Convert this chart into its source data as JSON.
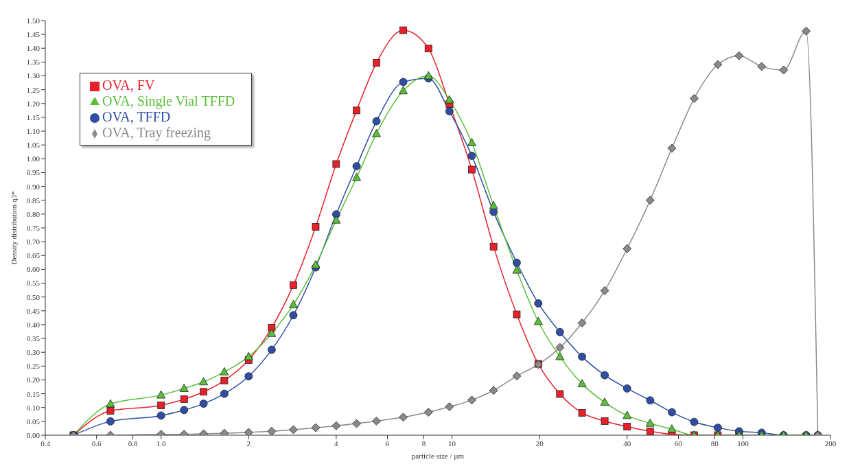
{
  "chart_data": {
    "type": "line",
    "xlabel": "particle size / µm",
    "ylabel": "Density distribution q3*",
    "log": "x",
    "grid": false,
    "legend": "top left",
    "line_style": "solid",
    "x": [
      0.5,
      0.67,
      1.0,
      1.2,
      1.4,
      1.65,
      2.0,
      2.4,
      2.85,
      3.4,
      4.0,
      4.7,
      5.5,
      6.8,
      8.3,
      9.8,
      11.7,
      13.9,
      16.7,
      19.8,
      23.5,
      28,
      33.5,
      40,
      48,
      57,
      68,
      82,
      97,
      116,
      138,
      165,
      181
    ],
    "xlim": [
      0.4,
      200
    ],
    "xticks": [
      0.4,
      0.6,
      0.8,
      {
        "value": 1,
        "label": "1.0"
      },
      2,
      4,
      6,
      8,
      10,
      20,
      40,
      60,
      80,
      100,
      200
    ],
    "ylim": [
      0,
      1.5
    ],
    "yticks": [
      {
        "value": 0,
        "label": "0.00"
      },
      0.05,
      {
        "value": 0.1,
        "label": "0.10"
      },
      0.15,
      {
        "value": 0.2,
        "label": "0.20"
      },
      0.25,
      {
        "value": 0.3,
        "label": "0.30"
      },
      0.35,
      {
        "value": 0.4,
        "label": "0.40"
      },
      0.45,
      {
        "value": 0.5,
        "label": "0.50"
      },
      0.55,
      {
        "value": 0.6,
        "label": "0.60"
      },
      0.65,
      {
        "value": 0.7,
        "label": "0.70"
      },
      0.75,
      {
        "value": 0.8,
        "label": "0.80"
      },
      0.85,
      {
        "value": 0.9,
        "label": "0.90"
      },
      0.95,
      {
        "value": 1,
        "label": "1.00"
      },
      1.05,
      {
        "value": 1.1,
        "label": "1.10"
      },
      1.15,
      {
        "value": 1.2,
        "label": "1.20"
      },
      1.25,
      {
        "value": 1.3,
        "label": "1.30"
      },
      1.35,
      {
        "value": 1.4,
        "label": "1.40"
      },
      1.45,
      {
        "value": 1.5,
        "label": "1.50"
      }
    ],
    "series": [
      {
        "name": "OVA, FV",
        "color": "#e8202a",
        "marker": "square",
        "values": [
          0,
          0.088,
          0.108,
          0.13,
          0.157,
          0.198,
          0.272,
          0.389,
          0.543,
          0.754,
          0.981,
          1.175,
          1.347,
          1.465,
          1.399,
          1.198,
          0.961,
          0.682,
          0.437,
          0.258,
          0.149,
          0.081,
          0.051,
          0.031,
          0.014,
          0.003,
          0,
          0,
          0,
          null,
          null,
          null,
          null
        ]
      },
      {
        "name": "OVA, TFFD",
        "color": "#2e4da3",
        "marker": "circle",
        "values": [
          0,
          0.05,
          0.071,
          0.091,
          0.114,
          0.15,
          0.213,
          0.309,
          0.434,
          0.607,
          0.799,
          0.973,
          1.136,
          1.278,
          1.291,
          1.172,
          1.011,
          0.808,
          0.624,
          0.477,
          0.373,
          0.284,
          0.217,
          0.169,
          0.126,
          0.083,
          0.048,
          0.027,
          0.014,
          0.009,
          0,
          0,
          0
        ]
      },
      {
        "name": "OVA, Single Vial  TFFD",
        "color": "#5bbf3a",
        "marker": "triangle",
        "values": [
          0,
          0.113,
          0.145,
          0.169,
          0.193,
          0.229,
          0.284,
          0.368,
          0.472,
          0.616,
          0.778,
          0.932,
          1.091,
          1.246,
          1.3,
          1.213,
          1.058,
          0.83,
          0.597,
          0.411,
          0.284,
          0.186,
          0.119,
          0.071,
          0.043,
          0.022,
          0,
          0,
          0,
          0,
          0,
          0,
          0
        ]
      },
      {
        "name": "OVA, Tray freezing",
        "color": "#8a8a8a",
        "marker": "diamond",
        "values": [
          0,
          0,
          0.003,
          0.003,
          0.005,
          0.007,
          0.01,
          0.014,
          0.02,
          0.027,
          0.034,
          0.042,
          0.051,
          0.065,
          0.083,
          0.103,
          0.127,
          0.162,
          0.214,
          0.256,
          0.317,
          0.406,
          0.523,
          0.675,
          0.85,
          1.038,
          1.218,
          1.341,
          1.373,
          1.334,
          1.321,
          1.462,
          0
        ]
      }
    ]
  }
}
